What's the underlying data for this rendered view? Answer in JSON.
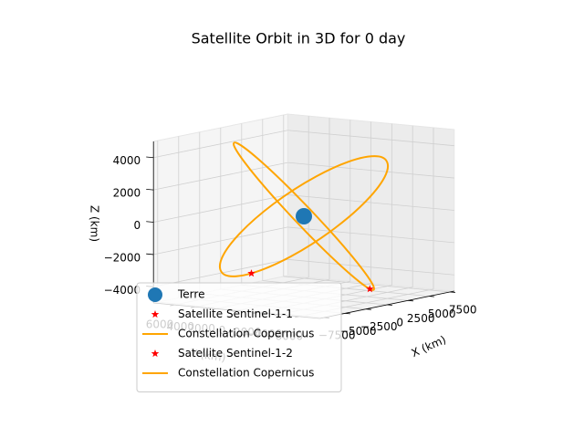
{
  "chart_data": {
    "type": "line3d",
    "title": "Satellite Orbit in 3D for 0 day",
    "xlabel": "X (km)",
    "ylabel": "Y (km)",
    "zlabel": "Z (km)",
    "xlim": [
      -8000,
      8000
    ],
    "ylim": [
      -8000,
      8000
    ],
    "zlim": [
      -5000,
      5000
    ],
    "xticks": [
      {
        "value": -7500,
        "label": "−7500"
      },
      {
        "value": -5000,
        "label": "−5000"
      },
      {
        "value": -2500,
        "label": "−2500"
      },
      0,
      2500,
      5000,
      7500
    ],
    "yticks": [
      {
        "value": -6000,
        "label": "−6000"
      },
      {
        "value": -4000,
        "label": "−4000"
      },
      {
        "value": -2000,
        "label": "−2000"
      },
      0,
      2000,
      4000,
      6000
    ],
    "zticks": [
      {
        "value": -4000,
        "label": "−4000"
      },
      {
        "value": -2000,
        "label": "−2000"
      },
      0,
      2000,
      4000
    ],
    "grid": true,
    "legend": "lower left",
    "series": [
      {
        "name": "Terre",
        "marker": "circle",
        "color": "#1f77b4",
        "x": [
          0
        ],
        "y": [
          0
        ],
        "z": [
          0
        ]
      },
      {
        "name": "Satellite Sentinel-1-1",
        "marker": "star",
        "color": "#ff0000",
        "x": [
          -6402
        ],
        "y": [
          -126
        ],
        "z": [
          -2849
        ]
      },
      {
        "name": "Constellation Copernicus",
        "marker": "line",
        "color": "#ffa500",
        "closed": true,
        "x": [
          5250,
          6402,
          5838,
          3710,
          588,
          -2692,
          -5250,
          -6402,
          -5838,
          -3710,
          -588,
          2692
        ],
        "y": [
          -3290,
          126,
          3508,
          5950,
          6798,
          5824,
          3290,
          -126,
          -3508,
          -5950,
          -6798,
          -5824
        ],
        "z": [
          3290,
          2849,
          1645,
          0,
          -1645,
          -2849,
          -3290,
          -2849,
          -1645,
          0,
          1645,
          2849
        ]
      },
      {
        "name": "Satellite Sentinel-1-2",
        "marker": "star",
        "color": "#ff0000",
        "x": [
          4130
        ],
        "y": [
          -3010
        ],
        "z": [
          -4760
        ]
      },
      {
        "name": "Constellation Copernicus",
        "marker": "line",
        "color": "#ffa500",
        "closed": true,
        "x": [
          -4130,
          -1512,
          1512,
          4130,
          5642,
          5642,
          4130,
          1512,
          -1512,
          -4130,
          -5642,
          -5642
        ],
        "y": [
          3010,
          5442,
          6415,
          5670,
          3405,
          228,
          -3010,
          -5442,
          -6415,
          -5670,
          -3405,
          -228
        ],
        "z": [
          4760,
          4122,
          2380,
          0,
          -2380,
          -4122,
          -4760,
          -4122,
          -2380,
          0,
          2380,
          4122
        ]
      }
    ]
  }
}
